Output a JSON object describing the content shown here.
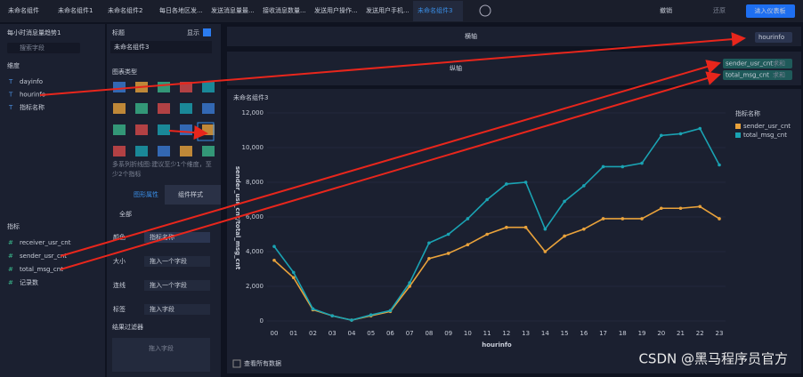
{
  "tabs": [
    "未命名组件",
    "未命名组件1",
    "未命名组件2",
    "每日各地区发...",
    "发送消息量最...",
    "接收消息数量...",
    "发送用户操作...",
    "发送用户手机...",
    "未命名组件3"
  ],
  "toolbar": {
    "undo": "撤销",
    "redo": "还原",
    "enter": "进入仪表板"
  },
  "left_panel": {
    "title": "每小时消息量趋势1",
    "search": "搜索字段",
    "dim_header": "维度",
    "dimensions": [
      "dayinfo",
      "hourinfo",
      "指标名称"
    ],
    "measure_header": "指标",
    "measures": [
      "receiver_usr_cnt",
      "sender_usr_cnt",
      "total_msg_cnt",
      "记录数"
    ]
  },
  "middle_panel": {
    "title_label": "标题",
    "show": "显示",
    "title_value": "未命名组件3",
    "chart_type": "图表类型",
    "desc": [
      "多系列折线图:建议至少1个维度，至",
      "少2个指标"
    ],
    "tab_a": "图形属性",
    "tab_b": "组件样式",
    "all": "全部",
    "rows": [
      {
        "label": "颜色",
        "field": "指标名称"
      },
      {
        "label": "大小",
        "field": "拖入一个字段"
      },
      {
        "label": "连线",
        "field": "拖入一个字段"
      },
      {
        "label": "标签",
        "field": "拖入字段"
      }
    ],
    "filter": "结果过滤器",
    "filter_drop": "拖入字段"
  },
  "axes_bar": {
    "x_label": "横轴",
    "x_field": "hourinfo",
    "y_label": "纵轴",
    "y_fields": [
      {
        "name": "sender_usr_cnt",
        "agg": "求和"
      },
      {
        "name": "total_msg_cnt",
        "agg": "求和"
      }
    ]
  },
  "view_all": "查看所有数据",
  "watermark": "CSDN @黑马程序员官方",
  "chart_data": {
    "type": "line",
    "title": "未命名组件3",
    "x_label": "hourinfo",
    "y_label": "sender_usr_cnt/total_msg_cnt",
    "legend_title": "指标名称",
    "categories": [
      "00",
      "01",
      "02",
      "03",
      "04",
      "05",
      "06",
      "07",
      "08",
      "09",
      "10",
      "11",
      "12",
      "13",
      "14",
      "15",
      "16",
      "17",
      "18",
      "19",
      "20",
      "21",
      "22",
      "23"
    ],
    "series": [
      {
        "name": "sender_usr_cnt",
        "color": "#e9a23b",
        "values": [
          3500,
          2500,
          650,
          300,
          50,
          300,
          550,
          2000,
          3600,
          3900,
          4400,
          5000,
          5400,
          5400,
          4000,
          4900,
          5300,
          5900,
          5900,
          5900,
          6500,
          6500,
          6600,
          5900
        ]
      },
      {
        "name": "total_msg_cnt",
        "color": "#1aa3b3",
        "values": [
          4300,
          2800,
          700,
          300,
          50,
          350,
          600,
          2200,
          4500,
          5000,
          5900,
          7000,
          7900,
          8000,
          5300,
          6900,
          7800,
          8900,
          8900,
          9100,
          10700,
          10800,
          11100,
          9000
        ]
      }
    ],
    "ylim": [
      0,
      12000
    ],
    "yticks": [
      0,
      {
        "value": 2000,
        "label": "2,000"
      },
      {
        "value": 4000,
        "label": "4,000"
      },
      {
        "value": 6000,
        "label": "6,000"
      },
      {
        "value": 8000,
        "label": "8,000"
      },
      {
        "value": 10000,
        "label": "10,000"
      },
      {
        "value": 12000,
        "label": "12,000"
      }
    ],
    "grid": true
  }
}
